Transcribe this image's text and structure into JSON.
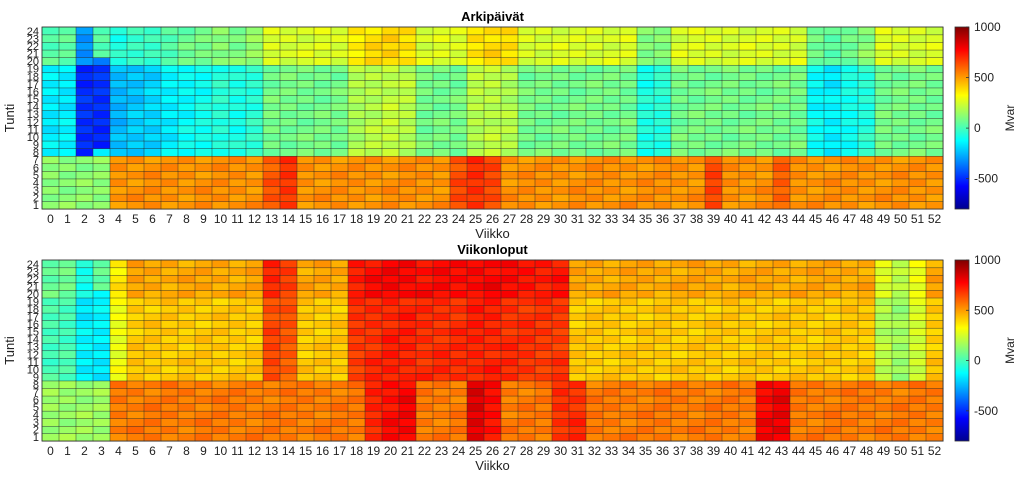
{
  "chart_data": [
    {
      "type": "heatmap",
      "title": "Arkipäivät",
      "xlabel": "Viikko",
      "ylabel": "Tunti",
      "x_ticks": [
        0,
        1,
        2,
        3,
        4,
        5,
        6,
        7,
        8,
        9,
        10,
        11,
        12,
        13,
        14,
        15,
        16,
        17,
        18,
        19,
        20,
        21,
        22,
        23,
        24,
        25,
        26,
        27,
        28,
        29,
        30,
        31,
        32,
        33,
        34,
        35,
        36,
        37,
        38,
        39,
        40,
        41,
        42,
        43,
        44,
        45,
        46,
        47,
        48,
        49,
        50,
        51,
        52
      ],
      "y_ticks": [
        1,
        2,
        3,
        4,
        5,
        6,
        7,
        8,
        9,
        10,
        11,
        12,
        13,
        14,
        15,
        16,
        17,
        18,
        19,
        20,
        21,
        22,
        23,
        24
      ],
      "xlim": [
        0,
        52
      ],
      "ylim": [
        1,
        24
      ],
      "colormap": "jet",
      "grid": true,
      "colorbar": {
        "label": "Mvar",
        "ticks": [
          -500,
          0,
          500,
          1000
        ],
        "range": [
          -800,
          1000
        ]
      },
      "shape": "weekly daytype profile",
      "night": {
        "hours": [
          1,
          7
        ],
        "weeks_1_3": 120,
        "default": 520,
        "peak_weeks": {
          "13": 620,
          "14": 680,
          "24": 640,
          "25": 690,
          "26": 660,
          "39": 650,
          "43": 600
        }
      },
      "day": {
        "hours": [
          8,
          24
        ],
        "weeks_1_3_core": -500,
        "weeks_1_3_edge": -150,
        "default": 80,
        "low_weeks": {
          "4": -250,
          "5": -220,
          "6": -200,
          "7": -150,
          "8": -120,
          "9": -100,
          "10": -60,
          "11": -80,
          "12": -50,
          "35": -80,
          "36": -60,
          "45": -120,
          "46": -150,
          "47": -100,
          "48": -60
        },
        "high_weeks": {
          "18": 180,
          "19": 200,
          "20": 220,
          "21": 200,
          "25": 200,
          "26": 210,
          "27": 190
        },
        "evening_bonus": 180
      }
    },
    {
      "type": "heatmap",
      "title": "Viikonloput",
      "xlabel": "Viikko",
      "ylabel": "Tunti",
      "x_ticks": [
        0,
        1,
        2,
        3,
        4,
        5,
        6,
        7,
        8,
        9,
        10,
        11,
        12,
        13,
        14,
        15,
        16,
        17,
        18,
        19,
        20,
        21,
        22,
        23,
        24,
        25,
        26,
        27,
        28,
        29,
        30,
        31,
        32,
        33,
        34,
        35,
        36,
        37,
        38,
        39,
        40,
        41,
        42,
        43,
        44,
        45,
        46,
        47,
        48,
        49,
        50,
        51,
        52
      ],
      "y_ticks": [
        1,
        2,
        3,
        4,
        5,
        6,
        7,
        8,
        9,
        10,
        11,
        12,
        13,
        14,
        15,
        16,
        17,
        18,
        19,
        20,
        21,
        22,
        23,
        24
      ],
      "xlim": [
        0,
        52
      ],
      "ylim": [
        1,
        24
      ],
      "colormap": "jet",
      "grid": true,
      "colorbar": {
        "label": "Mvar",
        "ticks": [
          -500,
          0,
          500,
          1000
        ],
        "range": [
          -800,
          1000
        ]
      },
      "shape": "weekly daytype profile",
      "night": {
        "hours": [
          1,
          8
        ],
        "weeks_1_3": 150,
        "default": 560,
        "peak_weeks": {
          "19": 720,
          "20": 760,
          "21": 780,
          "25": 820,
          "26": 760,
          "30": 700,
          "31": 700,
          "42": 780,
          "43": 800
        }
      },
      "day": {
        "hours": [
          9,
          24
        ],
        "weeks_1_3_core": -150,
        "weeks_1_3_edge": 0,
        "default": 420,
        "low_weeks": {
          "1": 50,
          "2": -100,
          "3": 0,
          "4": 300,
          "49": 200,
          "50": 150,
          "51": 250
        },
        "high_weeks": {
          "13": 650,
          "14": 620,
          "18": 680,
          "19": 700,
          "20": 720,
          "21": 720,
          "22": 700,
          "23": 700,
          "24": 700,
          "25": 720,
          "26": 720,
          "27": 700,
          "28": 690,
          "29": 680,
          "30": 680
        },
        "evening_bonus": 60
      }
    }
  ]
}
